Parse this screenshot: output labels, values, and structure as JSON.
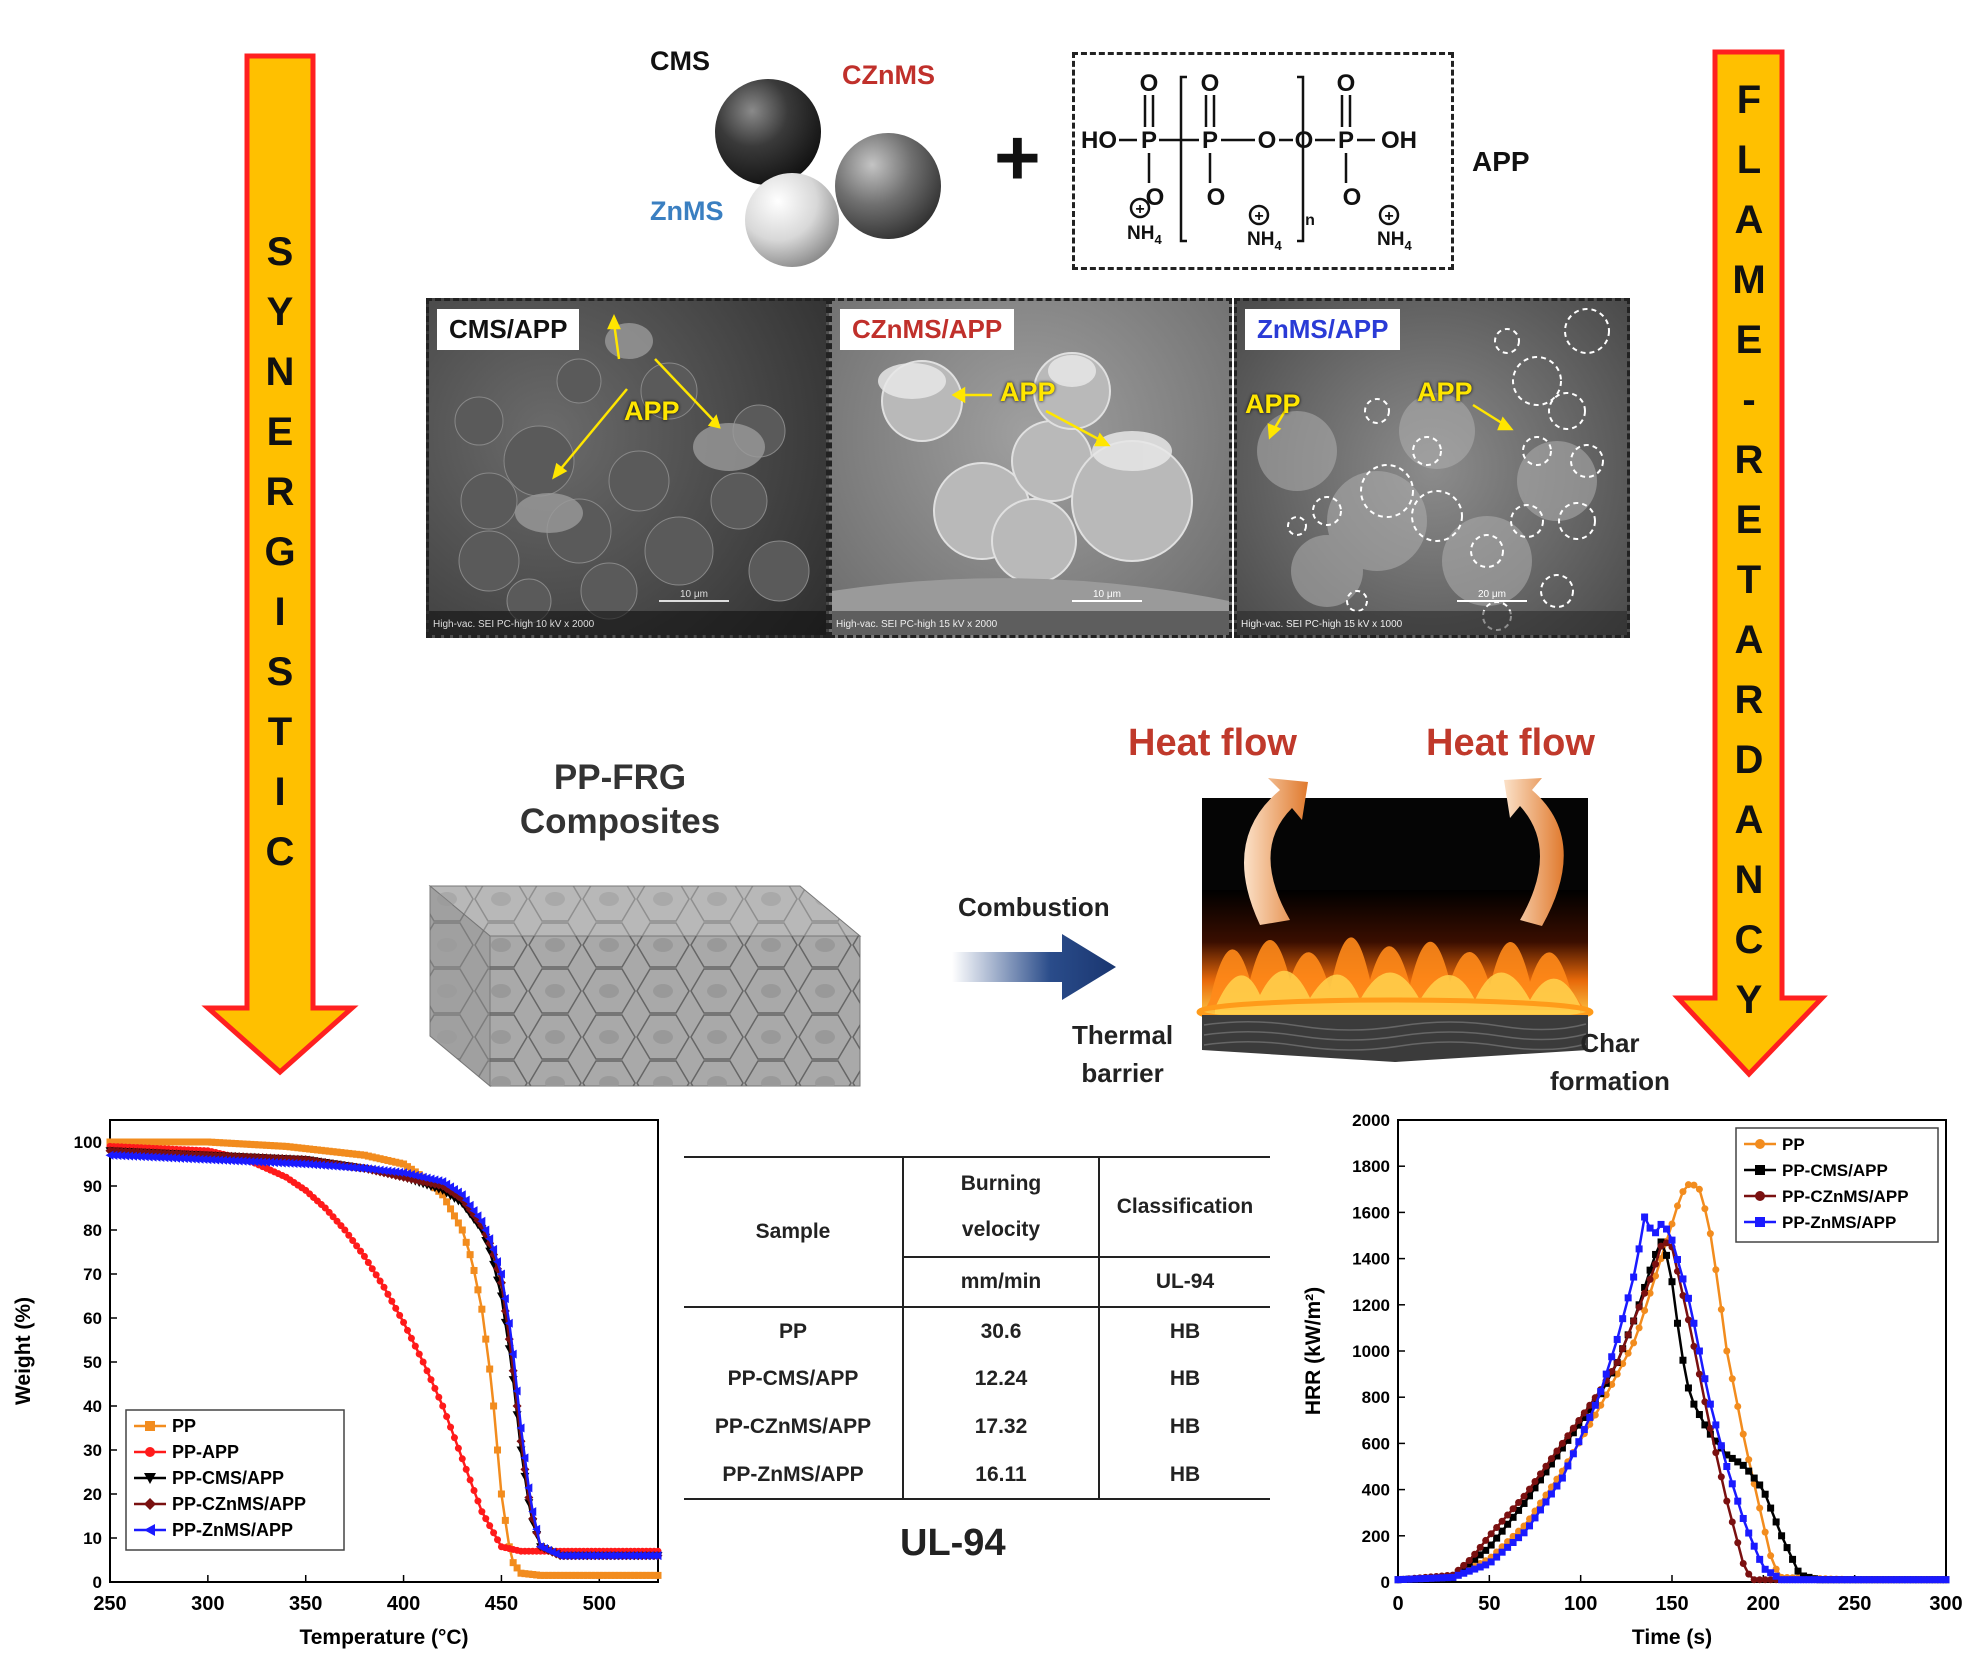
{
  "left_arrow": {
    "letters": [
      "S",
      "Y",
      "N",
      "E",
      "R",
      "G",
      "I",
      "S",
      "T",
      "I",
      "C"
    ]
  },
  "right_arrow": {
    "letters": [
      "F",
      "L",
      "A",
      "M",
      "E",
      "-",
      "R",
      "E",
      "T",
      "A",
      "R",
      "D",
      "A",
      "N",
      "C",
      "Y"
    ]
  },
  "spheres": {
    "cms": "CMS",
    "czn": "CZnMS",
    "zn": "ZnMS",
    "plus": "+",
    "cms_color": "#111111",
    "czn_color": "#c0302b",
    "zn_color": "#3a7fc1"
  },
  "app_structure": {
    "ho": "HO",
    "p": "P",
    "o": "O",
    "oh": "OH",
    "n": "n",
    "plus_sign": "+",
    "nh4": "NH",
    "nh4_sub": "4",
    "label": "APP"
  },
  "sem": [
    {
      "label": "CMS/APP",
      "label_color": "#111111",
      "annotations": [
        "APP"
      ],
      "scalebar": "10 μm",
      "footer": "High-vac.    SEI    PC-high      10 kV       x 2000"
    },
    {
      "label": "CZnMS/APP",
      "label_color": "#c0302b",
      "annotations": [
        "APP"
      ],
      "scalebar": "10 μm",
      "footer": "High-vac.    SEI    PC-high      15 kV       x 2000"
    },
    {
      "label": "ZnMS/APP",
      "label_color": "#2a3bd6",
      "annotations": [
        "APP",
        "APP"
      ],
      "scalebar": "20 μm",
      "footer": "High-vac.    SEI    PC-high      15 kV       x 1000"
    }
  ],
  "composite": {
    "title_line1": "PP-FRG",
    "title_line2": "Composites"
  },
  "combustion": {
    "label": "Combustion"
  },
  "fire": {
    "heat_flow_left": "Heat flow",
    "heat_flow_right": "Heat flow",
    "thermal_barrier_line1": "Thermal",
    "thermal_barrier_line2": "barrier",
    "char_line1": "Char",
    "char_line2": "formation"
  },
  "ul94": {
    "caption": "UL-94",
    "header": {
      "sample": "Sample",
      "velocity_line1": "Burning",
      "velocity_line2": "velocity",
      "unit": "mm/min",
      "classification": "Classification",
      "class_unit": "UL-94"
    },
    "rows": [
      {
        "sample": "PP",
        "velocity": "30.6",
        "class": "HB"
      },
      {
        "sample": "PP-CMS/APP",
        "velocity": "12.24",
        "class": "HB"
      },
      {
        "sample": "PP-CZnMS/APP",
        "velocity": "17.32",
        "class": "HB"
      },
      {
        "sample": "PP-ZnMS/APP",
        "velocity": "16.11",
        "class": "HB"
      }
    ]
  },
  "chart_data": [
    {
      "type": "line",
      "xlabel": "Temperature (°C)",
      "ylabel": "Weight (%)",
      "xlim": [
        250,
        530
      ],
      "ylim": [
        0,
        105
      ],
      "xticks": [
        250,
        300,
        350,
        400,
        450,
        500
      ],
      "yticks": [
        0,
        10,
        20,
        30,
        40,
        50,
        60,
        70,
        80,
        90,
        100
      ],
      "legend_position": "bottom-left",
      "series": [
        {
          "name": "PP",
          "color": "#f28c1e",
          "marker": "square",
          "x": [
            250,
            300,
            340,
            380,
            400,
            410,
            420,
            430,
            435,
            440,
            445,
            450,
            455,
            460,
            470,
            500,
            530
          ],
          "y": [
            100,
            100,
            99,
            97,
            95,
            92,
            88,
            80,
            73,
            62,
            45,
            20,
            5,
            2,
            1.5,
            1.5,
            1.5
          ]
        },
        {
          "name": "PP-APP",
          "color": "#ff1a1a",
          "marker": "circle",
          "x": [
            250,
            300,
            320,
            340,
            350,
            360,
            370,
            380,
            390,
            400,
            410,
            420,
            430,
            440,
            450,
            460,
            470,
            500,
            530
          ],
          "y": [
            99,
            98,
            96,
            92,
            89,
            85,
            80,
            74,
            67,
            59,
            50,
            40,
            28,
            16,
            8,
            7,
            7,
            7,
            7
          ]
        },
        {
          "name": "PP-CMS/APP",
          "color": "#000000",
          "marker": "triangle-down",
          "x": [
            250,
            300,
            350,
            380,
            400,
            420,
            430,
            440,
            445,
            450,
            455,
            460,
            465,
            470,
            480,
            500,
            530
          ],
          "y": [
            98,
            97,
            96,
            94,
            92,
            89,
            86,
            80,
            74,
            65,
            50,
            30,
            15,
            8,
            6,
            6,
            6
          ]
        },
        {
          "name": "PP-CZnMS/APP",
          "color": "#7a1010",
          "marker": "diamond",
          "x": [
            250,
            300,
            350,
            380,
            400,
            420,
            430,
            440,
            445,
            450,
            455,
            460,
            465,
            470,
            480,
            500,
            530
          ],
          "y": [
            98,
            97,
            96,
            94,
            92,
            90,
            87,
            81,
            76,
            68,
            52,
            32,
            16,
            8,
            6,
            6,
            6
          ]
        },
        {
          "name": "PP-ZnMS/APP",
          "color": "#1a1aff",
          "marker": "triangle-left",
          "x": [
            250,
            300,
            350,
            380,
            400,
            420,
            430,
            440,
            445,
            450,
            455,
            460,
            465,
            470,
            480,
            500,
            530
          ],
          "y": [
            97,
            96,
            95,
            94,
            93,
            91,
            88,
            82,
            77,
            70,
            56,
            35,
            18,
            8,
            6,
            6,
            6
          ]
        }
      ]
    },
    {
      "type": "line",
      "xlabel": "Time (s)",
      "ylabel": "HRR (kW/m²)",
      "xlim": [
        0,
        300
      ],
      "ylim": [
        0,
        2000
      ],
      "xticks": [
        0,
        50,
        100,
        150,
        200,
        250,
        300
      ],
      "yticks": [
        0,
        200,
        400,
        600,
        800,
        1000,
        1200,
        1400,
        1600,
        1800,
        2000
      ],
      "legend_position": "top-right",
      "series": [
        {
          "name": "PP",
          "color": "#f28c1e",
          "marker": "circle",
          "x": [
            0,
            30,
            50,
            70,
            90,
            110,
            130,
            140,
            150,
            155,
            160,
            165,
            170,
            175,
            180,
            190,
            200,
            205,
            210,
            250,
            300
          ],
          "y": [
            10,
            20,
            100,
            250,
            480,
            750,
            1050,
            1300,
            1550,
            1680,
            1730,
            1700,
            1560,
            1300,
            1000,
            600,
            250,
            80,
            20,
            10,
            10
          ]
        },
        {
          "name": "PP-CMS/APP",
          "color": "#000000",
          "marker": "square",
          "x": [
            0,
            30,
            50,
            70,
            90,
            110,
            120,
            130,
            140,
            145,
            150,
            155,
            160,
            170,
            180,
            190,
            200,
            210,
            220,
            230,
            300
          ],
          "y": [
            10,
            20,
            150,
            350,
            580,
            800,
            950,
            1150,
            1400,
            1490,
            1300,
            1000,
            800,
            650,
            550,
            500,
            400,
            200,
            30,
            10,
            10
          ]
        },
        {
          "name": "PP-CZnMS/APP",
          "color": "#7a1010",
          "marker": "circle",
          "x": [
            0,
            30,
            40,
            50,
            70,
            90,
            110,
            120,
            130,
            140,
            145,
            150,
            160,
            170,
            180,
            190,
            195,
            300
          ],
          "y": [
            10,
            30,
            100,
            200,
            380,
            600,
            820,
            950,
            1150,
            1350,
            1480,
            1450,
            1100,
            700,
            350,
            50,
            10,
            10
          ]
        },
        {
          "name": "PP-ZnMS/APP",
          "color": "#1a1aff",
          "marker": "square",
          "x": [
            0,
            30,
            50,
            70,
            90,
            110,
            120,
            130,
            135,
            140,
            145,
            150,
            160,
            170,
            180,
            190,
            200,
            210,
            300
          ],
          "y": [
            10,
            20,
            80,
            220,
            450,
            800,
            1050,
            1350,
            1580,
            1500,
            1560,
            1480,
            1200,
            800,
            500,
            250,
            60,
            10,
            10
          ]
        }
      ]
    }
  ]
}
